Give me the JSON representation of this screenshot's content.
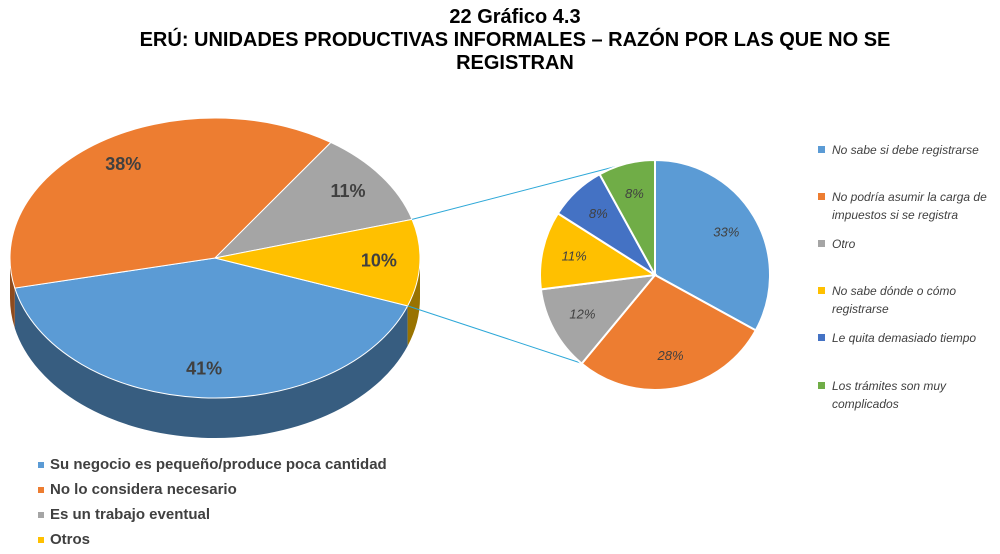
{
  "chart_data": [
    {
      "type": "pie",
      "title": "22 Gráfico 4.3",
      "subtitle": "ERÚ: UNIDADES PRODUCTIVAS INFORMALES – RAZÓN  POR LAS QUE NO SE REGISTRAN",
      "categories": [
        "Su negocio es pequeño/produce poca cantidad",
        "No lo considera necesario",
        "Es un trabajo eventual",
        "Otros"
      ],
      "values": [
        41,
        38,
        11,
        10
      ],
      "value_labels": [
        "41%",
        "38%",
        "11%",
        "10%"
      ],
      "colors": [
        "#5b9bd5",
        "#ed7d31",
        "#a5a5a5",
        "#ffc000"
      ]
    },
    {
      "type": "pie",
      "categories": [
        "No sabe si debe registrarse",
        "No podría asumir la carga de impuestos si se registra",
        "Otro",
        "No sabe dónde o cómo registrarse",
        "Le quita demasiado tiempo",
        "Los trámites son muy complicados"
      ],
      "values": [
        33,
        28,
        12,
        11,
        8,
        8
      ],
      "value_labels": [
        "33%",
        "28%",
        "12%",
        "11%",
        "8%",
        "8%"
      ],
      "colors": [
        "#5b9bd5",
        "#ed7d31",
        "#a5a5a5",
        "#ffc000",
        "#4472c4",
        "#70ad47"
      ]
    }
  ]
}
